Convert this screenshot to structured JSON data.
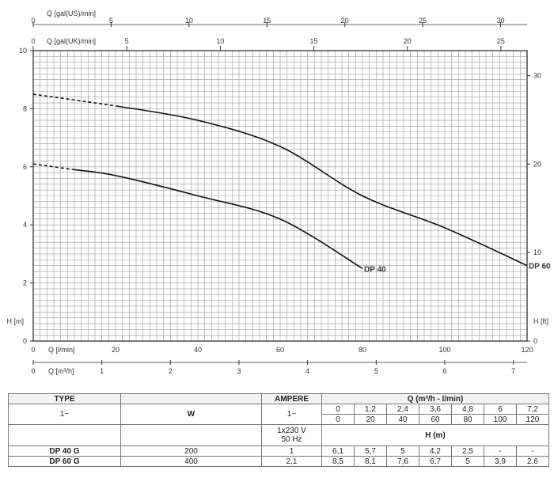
{
  "chart_data": {
    "type": "line",
    "axes": {
      "top_us": {
        "label": "Q [gal(US)/min]",
        "ticks": [
          0,
          5,
          10,
          15,
          20,
          25,
          30
        ],
        "unit_max": 31.7
      },
      "top_uk": {
        "label": "Q [gal(UK)/min]",
        "ticks": [
          0,
          5,
          10,
          15,
          20,
          25
        ],
        "unit_max": 26.4
      },
      "left": {
        "label": "H [m]",
        "ticks": [
          0,
          2,
          4,
          6,
          8,
          10
        ],
        "ylim": [
          0,
          10
        ]
      },
      "right": {
        "label": "H [ft]",
        "ticks": [
          0,
          10,
          20,
          30
        ]
      },
      "bottom_lmin": {
        "label": "Q [l/min]",
        "ticks": [
          0,
          20,
          40,
          60,
          80,
          100,
          120
        ],
        "xlim": [
          0,
          120
        ]
      },
      "bottom_m3h": {
        "label": "Q [m³/h]",
        "ticks": [
          0,
          1,
          2,
          3,
          4,
          5,
          6,
          7
        ]
      }
    },
    "grid": true,
    "series": [
      {
        "name": "DP 40",
        "x": [
          0,
          20,
          40,
          60,
          80
        ],
        "y": [
          6.1,
          5.7,
          5.0,
          4.2,
          2.5
        ],
        "dashed_until_x": 10
      },
      {
        "name": "DP 60",
        "x": [
          0,
          20,
          40,
          60,
          80,
          100,
          120
        ],
        "y": [
          8.5,
          8.1,
          7.6,
          6.7,
          5.0,
          3.9,
          2.6
        ],
        "dashed_until_x": 20
      }
    ]
  },
  "table": {
    "header": {
      "type": "TYPE",
      "ampere": "AMPERE",
      "q": "Q (m³/h - l/min)"
    },
    "phase": "1~",
    "w": "W",
    "ampere_phase": "1~",
    "supply": [
      "1x230 V",
      "50 Hz"
    ],
    "h_label": "H (m)",
    "q_m3h": [
      "0",
      "1,2",
      "2,4",
      "3,6",
      "4,8",
      "6",
      "7,2"
    ],
    "q_lmin": [
      "0",
      "20",
      "40",
      "60",
      "80",
      "100",
      "120"
    ],
    "rows": [
      {
        "type": "DP 40 G",
        "w": "200",
        "ampere": "1",
        "h": [
          "6,1",
          "5,7",
          "5",
          "4,2",
          "2,5",
          "-",
          "-"
        ]
      },
      {
        "type": "DP 60 G",
        "w": "400",
        "ampere": "2,1",
        "h": [
          "8,5",
          "8,1",
          "7,6",
          "6,7",
          "5",
          "3,9",
          "2,6"
        ]
      }
    ]
  }
}
